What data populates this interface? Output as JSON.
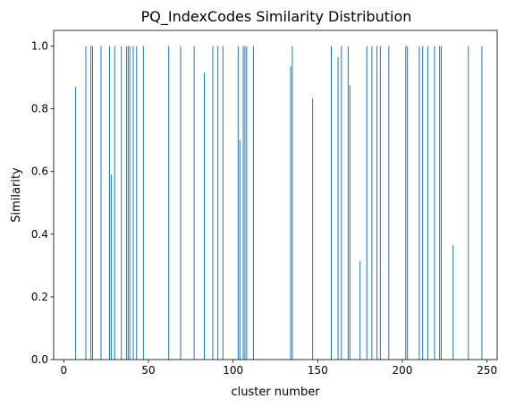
{
  "chart_data": {
    "type": "bar",
    "title": "PQ_IndexCodes Similarity Distribution",
    "xlabel": "cluster number",
    "ylabel": "Similarity",
    "xlim": [
      -6,
      256
    ],
    "ylim": [
      0,
      1.05
    ],
    "xticks": [
      0,
      50,
      100,
      150,
      200,
      250
    ],
    "yticks": [
      0.0,
      0.2,
      0.4,
      0.6,
      0.8,
      1.0
    ],
    "x": [
      7,
      13,
      16,
      17,
      22,
      27,
      28,
      30,
      34,
      37,
      38,
      39,
      41,
      43,
      47,
      62,
      69,
      77,
      83,
      88,
      91,
      94,
      103,
      104,
      106,
      107,
      108,
      112,
      134,
      135,
      147,
      158,
      162,
      164,
      168,
      169,
      175,
      179,
      182,
      185,
      187,
      192,
      202,
      203,
      210,
      212,
      215,
      219,
      222,
      223,
      230,
      239,
      247
    ],
    "values": [
      0.87,
      1.0,
      1.0,
      1.0,
      1.0,
      1.0,
      0.59,
      1.0,
      1.0,
      1.0,
      1.0,
      1.0,
      1.0,
      1.0,
      1.0,
      1.0,
      1.0,
      1.0,
      0.915,
      1.0,
      1.0,
      1.0,
      1.0,
      0.7,
      1.0,
      1.0,
      1.0,
      1.0,
      0.935,
      1.0,
      0.833,
      1.0,
      0.965,
      1.0,
      1.0,
      0.875,
      0.315,
      1.0,
      1.0,
      1.0,
      1.0,
      1.0,
      1.0,
      1.0,
      1.0,
      1.0,
      1.0,
      1.0,
      1.0,
      1.0,
      0.365,
      1.0,
      1.0
    ],
    "bar_color": "#1f77b4",
    "grid": false
  }
}
